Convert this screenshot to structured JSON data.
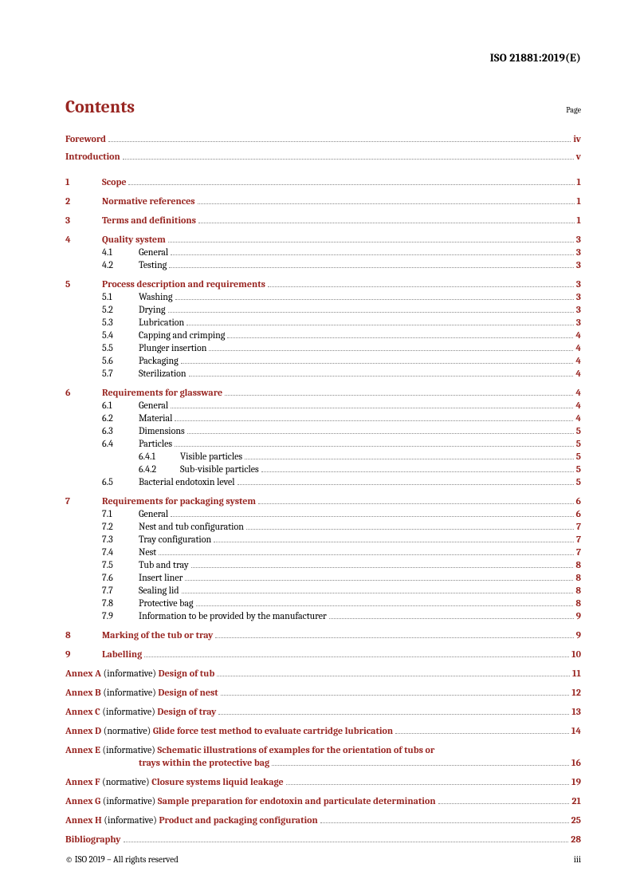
{
  "header": {
    "docId": "ISO 21881:2019(E)"
  },
  "contents": {
    "heading": "Contents",
    "pageLabel": "Page"
  },
  "front": [
    {
      "title": "Foreword",
      "page": "iv"
    },
    {
      "title": "Introduction",
      "page": "v"
    }
  ],
  "sections": [
    {
      "num": "1",
      "title": "Scope",
      "page": "1",
      "subs": []
    },
    {
      "num": "2",
      "title": "Normative references",
      "page": "1",
      "subs": []
    },
    {
      "num": "3",
      "title": "Terms and definitions",
      "page": "1",
      "subs": []
    },
    {
      "num": "4",
      "title": "Quality system",
      "page": "3",
      "subs": [
        {
          "num": "4.1",
          "title": "General",
          "page": "3"
        },
        {
          "num": "4.2",
          "title": "Testing",
          "page": "3"
        }
      ]
    },
    {
      "num": "5",
      "title": "Process description and requirements",
      "page": "3",
      "subs": [
        {
          "num": "5.1",
          "title": "Washing",
          "page": "3"
        },
        {
          "num": "5.2",
          "title": "Drying",
          "page": "3"
        },
        {
          "num": "5.3",
          "title": "Lubrication",
          "page": "3"
        },
        {
          "num": "5.4",
          "title": "Capping and crimping",
          "page": "4"
        },
        {
          "num": "5.5",
          "title": "Plunger insertion",
          "page": "4"
        },
        {
          "num": "5.6",
          "title": "Packaging",
          "page": "4"
        },
        {
          "num": "5.7",
          "title": "Sterilization",
          "page": "4"
        }
      ]
    },
    {
      "num": "6",
      "title": "Requirements for glassware",
      "page": "4",
      "subs": [
        {
          "num": "6.1",
          "title": "General",
          "page": "4"
        },
        {
          "num": "6.2",
          "title": "Material",
          "page": "4"
        },
        {
          "num": "6.3",
          "title": "Dimensions",
          "page": "5"
        },
        {
          "num": "6.4",
          "title": "Particles",
          "page": "5",
          "subsubs": [
            {
              "num": "6.4.1",
              "title": "Visible particles",
              "page": "5"
            },
            {
              "num": "6.4.2",
              "title": "Sub-visible particles",
              "page": "5"
            }
          ]
        },
        {
          "num": "6.5",
          "title": "Bacterial endotoxin level",
          "page": "5"
        }
      ]
    },
    {
      "num": "7",
      "title": "Requirements for packaging system",
      "page": "6",
      "subs": [
        {
          "num": "7.1",
          "title": "General",
          "page": "6"
        },
        {
          "num": "7.2",
          "title": "Nest and tub configuration",
          "page": "7"
        },
        {
          "num": "7.3",
          "title": "Tray configuration",
          "page": "7"
        },
        {
          "num": "7.4",
          "title": "Nest",
          "page": "7"
        },
        {
          "num": "7.5",
          "title": "Tub and tray",
          "page": "8"
        },
        {
          "num": "7.6",
          "title": "Insert liner",
          "page": "8"
        },
        {
          "num": "7.7",
          "title": "Sealing lid",
          "page": "8"
        },
        {
          "num": "7.8",
          "title": "Protective bag",
          "page": "8"
        },
        {
          "num": "7.9",
          "title": "Information to be provided by the manufacturer",
          "page": "9"
        }
      ]
    },
    {
      "num": "8",
      "title": "Marking of the tub or tray",
      "page": "9",
      "subs": []
    },
    {
      "num": "9",
      "title": "Labelling",
      "page": "10",
      "subs": []
    }
  ],
  "annexes": [
    {
      "letter": "Annex A",
      "note": " (informative) ",
      "title": "Design of tub",
      "page": "11"
    },
    {
      "letter": "Annex B",
      "note": " (informative) ",
      "title": "Design of nest",
      "page": "12"
    },
    {
      "letter": "Annex C",
      "note": " (informative) ",
      "title": "Design of tray",
      "page": "13"
    },
    {
      "letter": "Annex D",
      "note": " (normative) ",
      "title": "Glide force test method to evaluate cartridge lubrication",
      "page": "14"
    },
    {
      "letter": "Annex E",
      "note": " (informative) ",
      "title": "Schematic illustrations of examples for the orientation of tubs or",
      "title2": "trays within the protective bag",
      "page": "16"
    },
    {
      "letter": "Annex F",
      "note": " (normative) ",
      "title": "Closure systems liquid leakage",
      "page": "19"
    },
    {
      "letter": "Annex G",
      "note": " (informative) ",
      "title": "Sample preparation for endotoxin and particulate determination",
      "page": "21"
    },
    {
      "letter": "Annex H",
      "note": " (informative) ",
      "title": "Product and packaging configuration",
      "page": "25"
    }
  ],
  "back": [
    {
      "title": "Bibliography",
      "page": "28"
    }
  ],
  "footer": {
    "left": "© ISO 2019 – All rights reserved",
    "right": "iii"
  }
}
